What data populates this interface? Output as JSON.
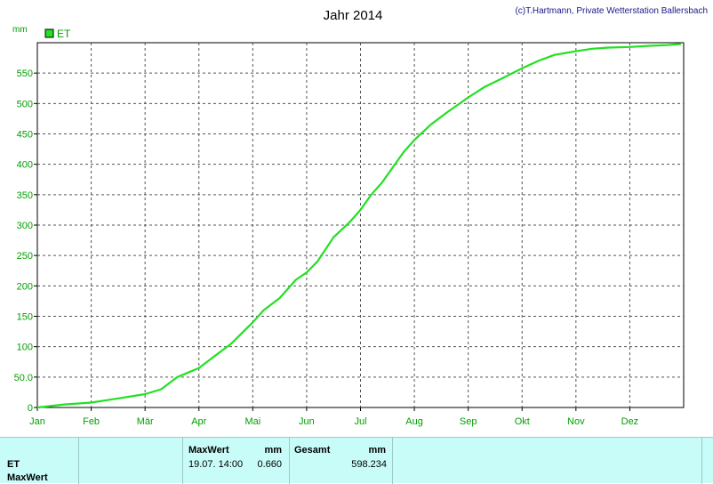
{
  "chart_data": {
    "type": "line",
    "title": "Jahr 2014",
    "copyright": "(c)T.Hartmann, Private Wetterstation Ballersbach",
    "ylabel": "mm",
    "ylim": [
      0,
      600
    ],
    "yticks": [
      "0",
      "50.0",
      "100",
      "150",
      "200",
      "250",
      "300",
      "350",
      "400",
      "450",
      "500",
      "550"
    ],
    "yvalues": [
      0,
      50,
      100,
      150,
      200,
      250,
      300,
      350,
      400,
      450,
      500,
      550
    ],
    "months": [
      "Jan",
      "Feb",
      "Mär",
      "Apr",
      "Mai",
      "Jun",
      "Jul",
      "Aug",
      "Sep",
      "Okt",
      "Nov",
      "Dez"
    ],
    "grid": true,
    "legend_position": "top-left",
    "series": [
      {
        "name": "ET",
        "color": "#22e022",
        "x": [
          0,
          0.5,
          1.0,
          1.5,
          2.0,
          2.3,
          2.6,
          3.0,
          3.3,
          3.6,
          4.0,
          4.2,
          4.5,
          4.8,
          5.0,
          5.2,
          5.5,
          5.8,
          6.0,
          6.2,
          6.4,
          6.6,
          6.8,
          7.0,
          7.3,
          7.6,
          8.0,
          8.3,
          8.6,
          9.0,
          9.3,
          9.6,
          10.0,
          10.3,
          10.6,
          11.0,
          11.4,
          11.7,
          11.95
        ],
        "values": [
          0,
          5,
          8,
          15,
          22,
          30,
          50,
          65,
          85,
          105,
          140,
          160,
          180,
          210,
          222,
          240,
          280,
          305,
          325,
          350,
          370,
          395,
          420,
          440,
          465,
          485,
          510,
          527,
          540,
          558,
          570,
          580,
          586,
          590,
          592,
          593,
          595,
          596,
          598
        ]
      }
    ]
  },
  "info": {
    "et_label": "ET",
    "maxwert_label": "MaxWert",
    "maxwert_header": "MaxWert",
    "maxwert_unit": "mm",
    "maxwert_date": "19.07. 14:00",
    "maxwert_value": "0.660",
    "gesamt_header": "Gesamt",
    "gesamt_unit": "mm",
    "gesamt_value": "598.234"
  }
}
